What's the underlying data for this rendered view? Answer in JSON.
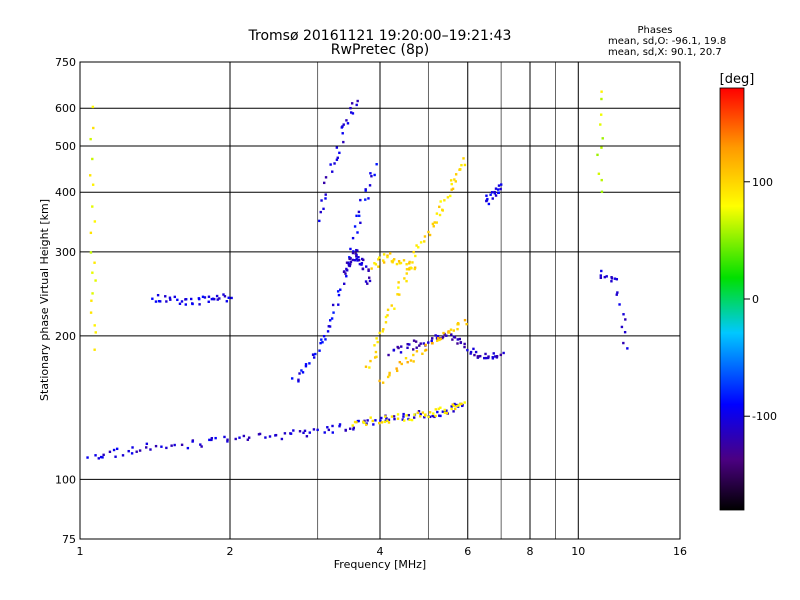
{
  "header": {
    "title": "Tromsø 20161121 19:20:00–19:21:43",
    "subtitle": "RwPretec (8p)",
    "stats_title": "Phases",
    "stats_o": "mean, sd,O: -96.1, 19.8",
    "stats_x": "mean, sd,X:  90.1, 20.7"
  },
  "chart_data": {
    "type": "scatter",
    "xlabel": "Frequency [MHz]",
    "ylabel": "Stationary phase Virtual Height [km]",
    "x_scale": "log",
    "y_scale": "log",
    "xlim": [
      1,
      16
    ],
    "ylim": [
      75,
      750
    ],
    "x_ticks": [
      1,
      2,
      4,
      6,
      8,
      10,
      16
    ],
    "x_tick_labels": [
      "1",
      "2",
      "4",
      "6",
      "8",
      "10",
      "16"
    ],
    "x_grid": [
      2,
      4,
      6,
      8,
      10
    ],
    "x_minor_grid": [
      3,
      5,
      7,
      9
    ],
    "y_ticks": [
      75,
      100,
      200,
      300,
      400,
      500,
      600,
      750
    ],
    "y_tick_labels": [
      "75",
      "100",
      "200",
      "300",
      "400",
      "500",
      "600",
      "750"
    ],
    "y_grid": [
      100,
      200,
      300,
      400,
      500,
      600
    ],
    "grid": true,
    "colorbar": {
      "label": "[deg]",
      "range": [
        -180,
        180
      ],
      "ticks": [
        100,
        0,
        -100
      ],
      "tick_labels": [
        "100",
        "0",
        "-100"
      ]
    },
    "traces": [
      {
        "kind": "o",
        "x": [
          1.05,
          1.2,
          1.4,
          1.7,
          2.0,
          2.4,
          2.8,
          3.2,
          3.6,
          4.0,
          4.5,
          5.0,
          5.5,
          5.9
        ],
        "y": [
          110,
          114,
          117,
          119,
          121,
          123,
          125,
          127,
          130,
          133,
          135,
          137,
          140,
          145
        ],
        "phase": -105
      },
      {
        "kind": "x",
        "x": [
          3.5,
          4.0,
          4.5,
          5.0,
          5.5,
          5.9
        ],
        "y": [
          130,
          133,
          135,
          137,
          140,
          144
        ],
        "phase": 90
      },
      {
        "kind": "o",
        "x": [
          1.4,
          1.55,
          1.7,
          1.85,
          2.0
        ],
        "y": [
          240,
          238,
          236,
          238,
          242
        ],
        "phase": -100
      },
      {
        "kind": "o",
        "x": [
          2.7,
          2.9,
          3.1,
          3.3,
          3.5,
          3.7,
          3.9
        ],
        "y": [
          160,
          180,
          200,
          240,
          300,
          380,
          450
        ],
        "phase": -95
      },
      {
        "kind": "o",
        "x": [
          3.0,
          3.2,
          3.4,
          3.6
        ],
        "y": [
          350,
          450,
          550,
          620
        ],
        "phase": -108
      },
      {
        "kind": "o",
        "x": [
          3.4,
          3.5,
          3.6,
          3.7,
          3.8
        ],
        "y": [
          270,
          290,
          300,
          280,
          260
        ],
        "phase": -112
      },
      {
        "kind": "o",
        "x": [
          4.2,
          4.6,
          5.0,
          5.4,
          5.8,
          6.2,
          6.6,
          7.0
        ],
        "y": [
          185,
          190,
          195,
          200,
          195,
          185,
          180,
          182
        ],
        "phase": -115
      },
      {
        "kind": "x",
        "x": [
          3.8,
          4.0,
          4.3,
          4.6,
          5.0,
          5.3,
          5.6,
          5.9
        ],
        "y": [
          170,
          200,
          240,
          285,
          330,
          370,
          420,
          470
        ],
        "phase": 95
      },
      {
        "kind": "x",
        "x": [
          4.0,
          4.5,
          5.0,
          5.5,
          5.9
        ],
        "y": [
          160,
          175,
          190,
          205,
          215
        ],
        "phase": 110
      },
      {
        "kind": "x",
        "x": [
          3.9,
          4.1,
          4.4,
          4.7
        ],
        "y": [
          280,
          295,
          285,
          275
        ],
        "phase": 100
      },
      {
        "kind": "x",
        "x": [
          1.05,
          1.06,
          1.07
        ],
        "y": [
          600,
          300,
          190
        ],
        "phase": 80
      },
      {
        "kind": "o",
        "x": [
          6.5,
          6.8,
          7.0
        ],
        "y": [
          380,
          400,
          410
        ],
        "phase": -100
      },
      {
        "kind": "x",
        "x": [
          11.0,
          11.1
        ],
        "y": [
          650,
          400
        ],
        "phase": 70
      },
      {
        "kind": "o",
        "x": [
          11.0,
          12.0,
          12.5
        ],
        "y": [
          270,
          260,
          190
        ],
        "phase": -110
      }
    ]
  }
}
